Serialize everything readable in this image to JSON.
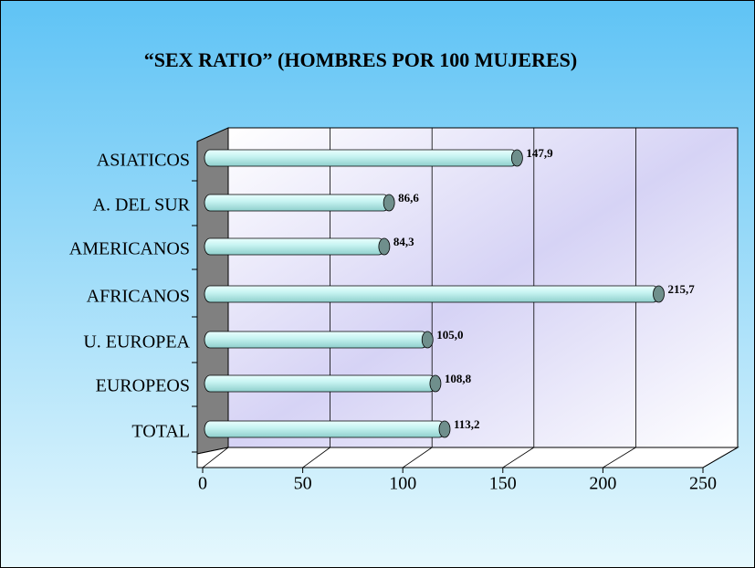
{
  "chart_data": {
    "type": "bar",
    "orientation": "horizontal",
    "title": "“SEX RATIO” (HOMBRES POR 100 MUJERES)",
    "categories": [
      "ASIATICOS",
      "A. DEL SUR",
      "AMERICANOS",
      "AFRICANOS",
      "U. EUROPEA",
      "EUROPEOS",
      "TOTAL"
    ],
    "values": [
      147.9,
      86.6,
      84.3,
      215.7,
      105.0,
      108.8,
      113.2
    ],
    "value_labels": [
      "147,9",
      "86,6",
      "84,3",
      "215,7",
      "105,0",
      "108,8",
      "113,2"
    ],
    "color": "#c8f4f2",
    "xlim": [
      0,
      250
    ],
    "xticks": [
      0,
      50,
      100,
      150,
      200,
      250
    ],
    "grid": true
  }
}
